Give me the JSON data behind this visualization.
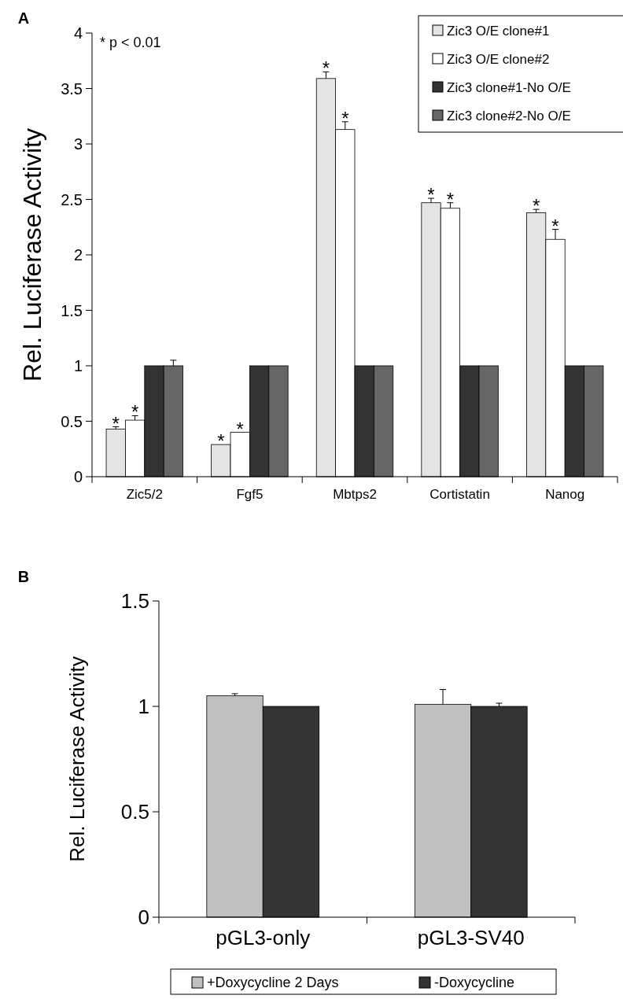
{
  "chart_data": [
    {
      "type": "bar",
      "title": "A",
      "ylabel": "Rel. Luciferase Activity",
      "categories": [
        "Zic5/2",
        "Fgf5",
        "Mbtps2",
        "Cortistatin",
        "Nanog"
      ],
      "series": [
        {
          "name": "Zic3 O/E clone#1",
          "color": "#e4e4e4",
          "values": [
            0.43,
            0.29,
            3.59,
            2.47,
            2.38
          ],
          "errors": [
            0.02,
            null,
            0.06,
            0.04,
            0.03
          ]
        },
        {
          "name": "Zic3 O/E clone#2",
          "color": "#ffffff",
          "values": [
            0.51,
            0.4,
            3.13,
            2.42,
            2.14
          ],
          "errors": [
            0.04,
            null,
            0.07,
            0.05,
            0.09
          ]
        },
        {
          "name": "Zic3 clone#1-No O/E",
          "color": "#333333",
          "values": [
            1,
            1,
            1,
            1,
            1
          ],
          "errors": [
            null,
            null,
            null,
            null,
            null
          ]
        },
        {
          "name": "Zic3 clone#2-No O/E",
          "color": "#666666",
          "values": [
            1,
            1,
            1,
            1,
            1
          ],
          "errors": [
            0.05,
            null,
            null,
            null,
            null
          ]
        }
      ],
      "ylim": [
        0,
        4
      ],
      "yticks": [
        0,
        0.5,
        1,
        1.5,
        2,
        2.5,
        3,
        3.5,
        4
      ],
      "grid": false,
      "legend": "top right",
      "annotations": [
        "*  p < 0.01",
        "*",
        "*",
        "*",
        "*",
        "*",
        "*",
        "*",
        "*",
        "*",
        "*"
      ]
    },
    {
      "type": "bar",
      "title": "B",
      "ylabel": "Rel. Luciferase Activity",
      "categories": [
        "pGL3-only",
        "pGL3-SV40"
      ],
      "series": [
        {
          "name": "+Doxycycline 2 Days",
          "color": "#c0c0c0",
          "values": [
            1.05,
            1.01
          ],
          "errors": [
            0.01,
            0.07
          ]
        },
        {
          "name": "-Doxycycline",
          "color": "#333333",
          "values": [
            1,
            1
          ],
          "errors": [
            null,
            0.015
          ]
        }
      ],
      "ylim": [
        0,
        1.5
      ],
      "yticks": [
        0,
        0.5,
        1,
        1.5
      ],
      "grid": false,
      "legend": "bottom"
    }
  ]
}
